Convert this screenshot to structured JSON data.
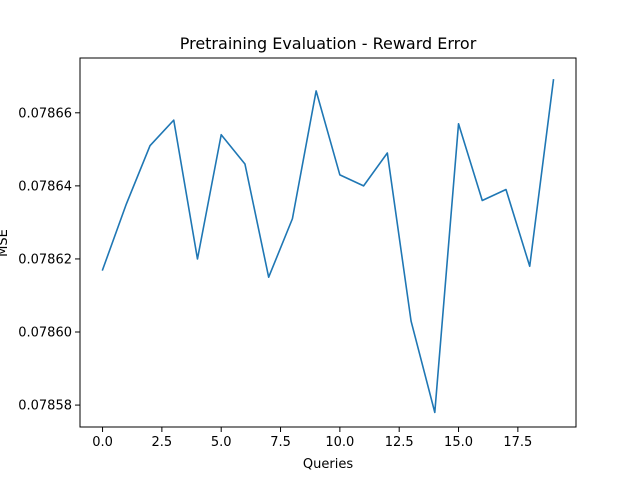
{
  "chart_data": {
    "type": "line",
    "title": "Pretraining Evaluation - Reward Error",
    "xlabel": "Queries",
    "ylabel": "MSE",
    "xlim": [
      -0.95,
      19.95
    ],
    "ylim": [
      0.078574,
      0.078675
    ],
    "x_ticks": [
      0.0,
      2.5,
      5.0,
      7.5,
      10.0,
      12.5,
      15.0,
      17.5
    ],
    "x_tick_labels": [
      "0.0",
      "2.5",
      "5.0",
      "7.5",
      "10.0",
      "12.5",
      "15.0",
      "17.5"
    ],
    "y_ticks": [
      0.07858,
      0.0786,
      0.07862,
      0.07864,
      0.07866
    ],
    "y_tick_labels": [
      "0.07858",
      "0.07860",
      "0.07862",
      "0.07864",
      "0.07866"
    ],
    "grid": false,
    "series": [
      {
        "color": "#1f77b4",
        "x": [
          0,
          1,
          2,
          3,
          4,
          5,
          6,
          7,
          8,
          9,
          10,
          11,
          12,
          13,
          14,
          15,
          16,
          17,
          18,
          19
        ],
        "values": [
          0.078617,
          0.078635,
          0.078651,
          0.078658,
          0.07862,
          0.078654,
          0.078646,
          0.078615,
          0.078631,
          0.078666,
          0.078643,
          0.07864,
          0.078649,
          0.078603,
          0.078578,
          0.078657,
          0.078636,
          0.078639,
          0.078618,
          0.078669
        ]
      }
    ]
  }
}
